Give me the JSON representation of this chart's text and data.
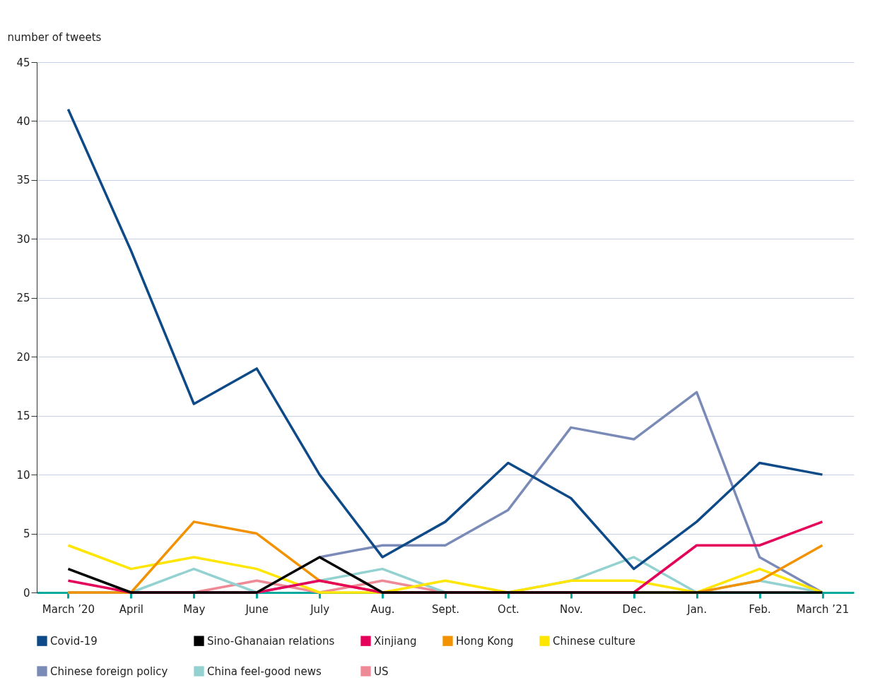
{
  "chart_data": {
    "type": "line",
    "ylabel": "number of tweets",
    "categories": [
      "March ’20",
      "April",
      "May",
      "June",
      "July",
      "Aug.",
      "Sept.",
      "Oct.",
      "Nov.",
      "Dec.",
      "Jan.",
      "Feb.",
      "March ’21"
    ],
    "series": [
      {
        "name": "Covid-19",
        "color": "#0d4a87",
        "values": [
          41,
          29,
          16,
          19,
          10,
          3,
          6,
          11,
          8,
          2,
          6,
          11,
          10
        ]
      },
      {
        "name": "Sino-Ghanaian relations",
        "color": "#000000",
        "values": [
          2,
          0,
          0,
          0,
          3,
          0,
          0,
          0,
          0,
          0,
          0,
          0,
          0
        ]
      },
      {
        "name": "Xinjiang",
        "color": "#e5005a",
        "values": [
          1,
          0,
          0,
          0,
          1,
          0,
          0,
          0,
          0,
          0,
          4,
          4,
          6
        ]
      },
      {
        "name": "Hong Kong",
        "color": "#f39200",
        "values": [
          0,
          0,
          6,
          5,
          1,
          0,
          0,
          0,
          0,
          0,
          0,
          1,
          4
        ]
      },
      {
        "name": "Chinese culture",
        "color": "#ffe600",
        "values": [
          4,
          2,
          3,
          2,
          0,
          0,
          1,
          0,
          1,
          1,
          0,
          2,
          0
        ]
      },
      {
        "name": "Chinese foreign policy",
        "color": "#7b8bb8",
        "values": [
          null,
          null,
          null,
          null,
          3,
          4,
          4,
          7,
          14,
          13,
          17,
          3,
          0
        ]
      },
      {
        "name": "China feel-good news",
        "color": "#93d2d0",
        "values": [
          0,
          0,
          2,
          0,
          1,
          2,
          0,
          0,
          1,
          3,
          0,
          1,
          0
        ]
      },
      {
        "name": "US",
        "color": "#ee8a96",
        "values": [
          0,
          0,
          0,
          1,
          0,
          1,
          0,
          0,
          null,
          null,
          null,
          null,
          null
        ]
      }
    ],
    "ylim": [
      0,
      45
    ],
    "yticks": [
      0,
      5,
      10,
      15,
      20,
      25,
      30,
      35,
      40,
      45
    ],
    "grid": "y",
    "legend": "bottom",
    "marker": "none",
    "line_style": "solid"
  }
}
